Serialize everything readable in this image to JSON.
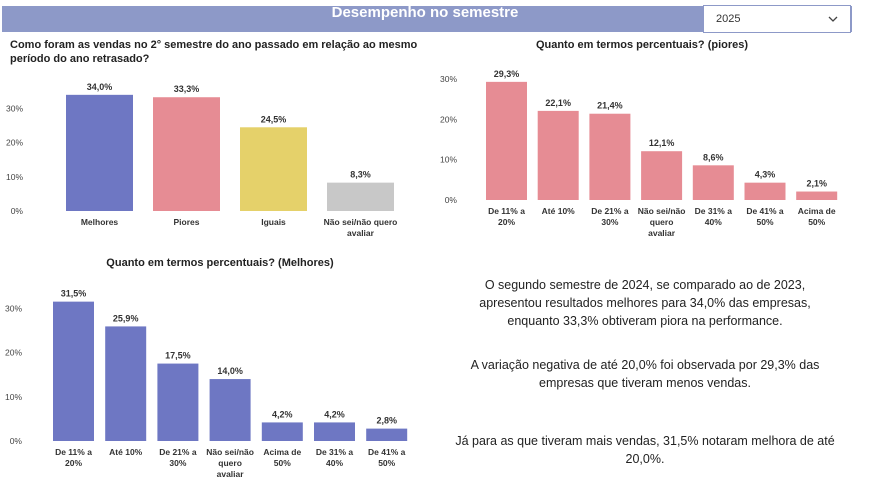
{
  "header": {
    "title": "Desempenho no semestre",
    "year_filter": {
      "selected": "2025",
      "icon": "chevron-down-icon"
    }
  },
  "colors": {
    "banner": "#8d99c8",
    "blue": "#6e77c3",
    "red": "#e68c94",
    "yellow": "#e5d16a",
    "gray": "#c8c8c8"
  },
  "chart_data": [
    {
      "id": "overall",
      "type": "bar",
      "title_lines": [
        "Como foram as vendas no 2° semestre do ano passado em relação ao mesmo",
        "período do ano retrasado?"
      ],
      "categories": [
        [
          "Melhores"
        ],
        [
          "Piores"
        ],
        [
          "Iguais"
        ],
        [
          "Não sei/não quero",
          "avaliar"
        ]
      ],
      "values": [
        34.0,
        33.3,
        24.5,
        8.3
      ],
      "value_labels": [
        "34,0%",
        "33,3%",
        "24,5%",
        "8,3%"
      ],
      "bar_colors": [
        "#6e77c3",
        "#e68c94",
        "#e5d16a",
        "#c8c8c8"
      ],
      "yticks": [
        0,
        10,
        20,
        30
      ],
      "ytick_labels": [
        "0%",
        "10%",
        "20%",
        "30%"
      ],
      "ylim": [
        0,
        36
      ],
      "grid": false
    },
    {
      "id": "piores",
      "type": "bar",
      "title_lines": [
        "Quanto em termos percentuais? (piores)"
      ],
      "categories": [
        [
          "De 11% a",
          "20%"
        ],
        [
          "Até 10%"
        ],
        [
          "De 21% a",
          "30%"
        ],
        [
          "Não sei/não",
          "quero",
          "avaliar"
        ],
        [
          "De 31% a",
          "40%"
        ],
        [
          "De 41% a",
          "50%"
        ],
        [
          "Acima de",
          "50%"
        ]
      ],
      "values": [
        29.3,
        22.1,
        21.4,
        12.1,
        8.6,
        4.3,
        2.1
      ],
      "value_labels": [
        "29,3%",
        "22,1%",
        "21,4%",
        "12,1%",
        "8,6%",
        "4,3%",
        "2,1%"
      ],
      "bar_colors": [
        "#e68c94"
      ],
      "yticks": [
        0,
        10,
        20,
        30
      ],
      "ytick_labels": [
        "0%",
        "10%",
        "20%",
        "30%"
      ],
      "ylim": [
        0,
        31
      ],
      "grid": false
    },
    {
      "id": "melhores",
      "type": "bar",
      "title_lines": [
        "Quanto em termos percentuais? (Melhores)"
      ],
      "categories": [
        [
          "De 11% a",
          "20%"
        ],
        [
          "Até 10%"
        ],
        [
          "De 21% a",
          "30%"
        ],
        [
          "Não sei/não",
          "quero",
          "avaliar"
        ],
        [
          "Acima de",
          "50%"
        ],
        [
          "De 31% a",
          "40%"
        ],
        [
          "De 41% a",
          "50%"
        ]
      ],
      "values": [
        31.5,
        25.9,
        17.5,
        14.0,
        4.2,
        4.2,
        2.8
      ],
      "value_labels": [
        "31,5%",
        "25,9%",
        "17,5%",
        "14,0%",
        "4,2%",
        "4,2%",
        "2,8%"
      ],
      "bar_colors": [
        "#6e77c3"
      ],
      "yticks": [
        0,
        10,
        20,
        30
      ],
      "ytick_labels": [
        "0%",
        "10%",
        "20%",
        "30%"
      ],
      "ylim": [
        0,
        33
      ],
      "grid": false
    }
  ],
  "summary": {
    "p1": "O segundo semestre de 2024, se comparado ao de 2023, apresentou resultados melhores para 34,0% das empresas, enquanto 33,3% obtiveram piora na performance.",
    "p2": "A variação negativa de até 20,0% foi observada por 29,3% das empresas que tiveram menos vendas.",
    "p3": "Já para as que tiveram mais vendas, 31,5% notaram melhora de até 20,0%."
  }
}
